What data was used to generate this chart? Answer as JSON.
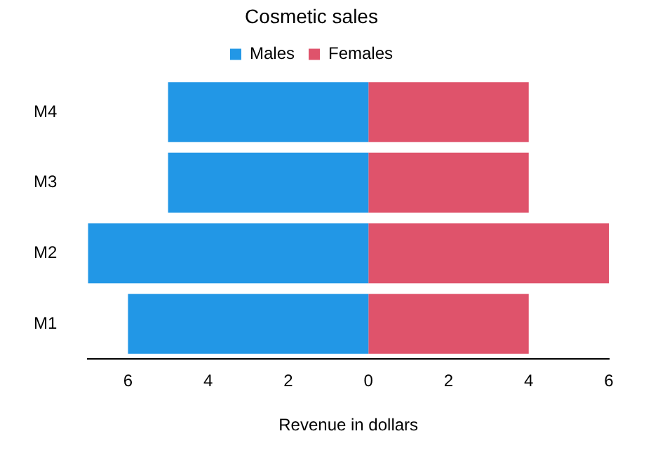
{
  "chart_data": {
    "type": "bar",
    "title": "Cosmetic sales",
    "xlabel": "Revenue in dollars",
    "orientation": "horizontal",
    "stacked": true,
    "categories": [
      "M4",
      "M3",
      "M2",
      "M1"
    ],
    "series": [
      {
        "name": "Males",
        "color": "#2297e6",
        "values": [
          -5,
          -5,
          -7,
          -6
        ]
      },
      {
        "name": "Females",
        "color": "#df536b",
        "values": [
          4,
          4,
          6,
          4
        ]
      }
    ],
    "xlim": [
      -7,
      6
    ],
    "xticks": [
      {
        "value": -6,
        "label": "6"
      },
      {
        "value": -4,
        "label": "4"
      },
      {
        "value": -2,
        "label": "2"
      },
      0,
      2,
      4,
      6
    ],
    "grid": false,
    "legend": "top"
  }
}
